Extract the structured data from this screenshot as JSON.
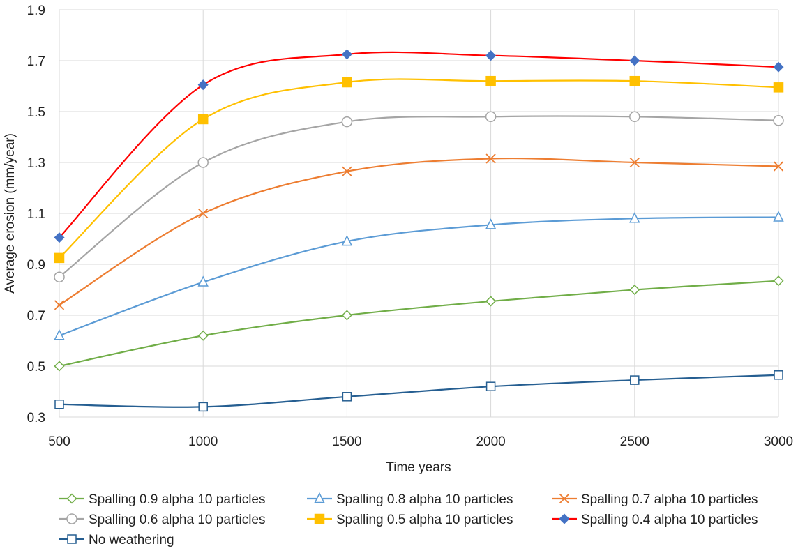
{
  "chart_data": {
    "type": "line",
    "title": "",
    "xlabel": "Time years",
    "ylabel": "Average erosion (mm/year)",
    "x": [
      500,
      1000,
      1500,
      2000,
      2500,
      3000
    ],
    "xlim": [
      500,
      3000
    ],
    "ylim": [
      0.3,
      1.9
    ],
    "x_ticks": [
      "500",
      "1000",
      "1500",
      "2000",
      "2500",
      "3000"
    ],
    "y_ticks": [
      "0.3",
      "0.5",
      "0.7",
      "0.9",
      "1.1",
      "1.3",
      "1.5",
      "1.7",
      "1.9"
    ],
    "grid": true,
    "legend_position": "bottom",
    "series": [
      {
        "name": "Spalling 0.9 alpha 10 particles",
        "color": "#70ad47",
        "marker": "diamond-open",
        "values": [
          0.5,
          0.62,
          0.7,
          0.755,
          0.8,
          0.835
        ]
      },
      {
        "name": "Spalling 0.8 alpha 10 particles",
        "color": "#5b9bd5",
        "marker": "triangle-open",
        "values": [
          0.62,
          0.83,
          0.99,
          1.055,
          1.08,
          1.085
        ]
      },
      {
        "name": "Spalling 0.7 alpha 10 particles",
        "color": "#ed7d31",
        "marker": "x",
        "values": [
          0.74,
          1.1,
          1.265,
          1.315,
          1.3,
          1.285
        ]
      },
      {
        "name": "Spalling 0.6 alpha 10 particles",
        "color": "#a5a5a5",
        "marker": "circle-open",
        "values": [
          0.85,
          1.3,
          1.46,
          1.48,
          1.48,
          1.465
        ]
      },
      {
        "name": "Spalling 0.5 alpha 10 particles",
        "color": "#ffc000",
        "marker": "square-filled",
        "values": [
          0.925,
          1.47,
          1.615,
          1.62,
          1.62,
          1.595
        ]
      },
      {
        "name": "Spalling 0.4 alpha 10 particles",
        "color": "#ff0000",
        "marker": "diamond-filled",
        "marker_color": "#4472c4",
        "values": [
          1.005,
          1.605,
          1.725,
          1.72,
          1.7,
          1.675
        ]
      },
      {
        "name": "No weathering",
        "color": "#255e91",
        "marker": "square-open",
        "values": [
          0.35,
          0.34,
          0.38,
          0.42,
          0.445,
          0.465
        ]
      }
    ]
  }
}
